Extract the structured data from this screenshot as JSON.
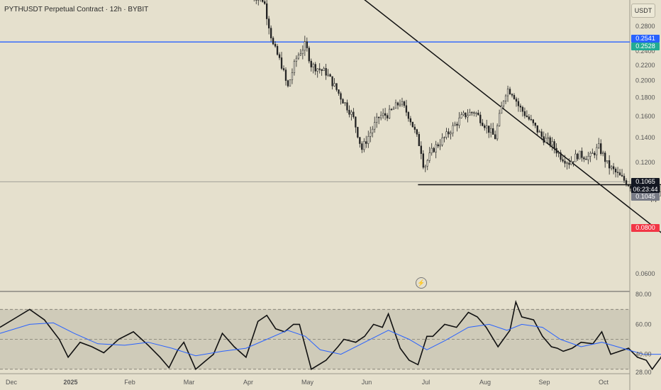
{
  "header": {
    "title": "PYTHUSDT Perpetual Contract · 12h · BYBIT",
    "currency": "USDT"
  },
  "price_tags": [
    {
      "label": "0.2541",
      "value": 0.2541,
      "color": "#2962ff"
    },
    {
      "label": "0.2528",
      "value": 0.2528,
      "color": "#22ab94"
    },
    {
      "label": "0.1065",
      "sub": "06:23:44",
      "value": 0.1065,
      "color": "#131722"
    },
    {
      "label": "0.1045",
      "value": 0.1045,
      "color": "#787b86"
    },
    {
      "label": "0.0800",
      "value": 0.08,
      "color": "#f23645"
    }
  ],
  "icons": {
    "alert": "lightning-icon"
  },
  "colors": {
    "background": "#e5e0cd",
    "candles": "#222222",
    "resistance": "#2962ff",
    "target_zone": "#a6d1b8",
    "stop_zone": "#eeb6b0",
    "rsi": "#111111",
    "rsi_ma": "#2962ff"
  },
  "chart_data": [
    {
      "type": "candlestick",
      "title": "PYTHUSDT Perpetual Contract · 12h · BYBIT",
      "timeframe": "12h",
      "y_scale": "log",
      "ylim": [
        0.054,
        0.33
      ],
      "y_ticks": [
        0.28,
        0.24,
        0.22,
        0.2,
        0.18,
        0.16,
        0.14,
        0.12,
        0.06
      ],
      "y_tick_labels": [
        "0.2800",
        "0.2400",
        "0.2200",
        "0.2000",
        "0.1800",
        "0.1600",
        "0.1400",
        "0.1200",
        "0.0600"
      ],
      "x_ticks": [
        "Dec",
        "2025",
        "Feb",
        "Mar",
        "Apr",
        "May",
        "Jun",
        "Jul",
        "Aug",
        "Sep",
        "Oct"
      ],
      "grid": false,
      "price_path": [
        [
          8.5,
          0.34
        ],
        [
          8.9,
          0.33
        ],
        [
          9.0,
          0.3
        ],
        [
          9.2,
          0.25
        ],
        [
          9.5,
          0.22
        ],
        [
          9.7,
          0.19
        ],
        [
          10.0,
          0.23
        ],
        [
          10.3,
          0.25
        ],
        [
          10.5,
          0.22
        ],
        [
          11.0,
          0.21
        ],
        [
          11.5,
          0.18
        ],
        [
          11.9,
          0.16
        ],
        [
          12.2,
          0.13
        ],
        [
          12.5,
          0.145
        ],
        [
          12.8,
          0.16
        ],
        [
          13.1,
          0.162
        ],
        [
          13.5,
          0.175
        ],
        [
          13.8,
          0.16
        ],
        [
          14.0,
          0.145
        ],
        [
          14.2,
          0.13
        ],
        [
          14.3,
          0.116
        ],
        [
          14.6,
          0.13
        ],
        [
          15.0,
          0.14
        ],
        [
          15.6,
          0.16
        ],
        [
          16.0,
          0.165
        ],
        [
          16.4,
          0.15
        ],
        [
          16.7,
          0.14
        ],
        [
          17.0,
          0.18
        ],
        [
          17.1,
          0.19
        ],
        [
          17.3,
          0.185
        ],
        [
          17.5,
          0.17
        ],
        [
          17.9,
          0.155
        ],
        [
          18.3,
          0.14
        ],
        [
          18.6,
          0.135
        ],
        [
          18.9,
          0.125
        ],
        [
          19.2,
          0.12
        ],
        [
          19.5,
          0.126
        ],
        [
          19.9,
          0.124
        ],
        [
          20.2,
          0.132
        ],
        [
          20.5,
          0.118
        ],
        [
          20.9,
          0.11
        ],
        [
          21.2,
          0.105
        ],
        [
          21.5,
          0.1
        ],
        [
          21.8,
          0.096
        ],
        [
          22.2,
          0.098
        ],
        [
          22.5,
          0.102
        ],
        [
          22.7,
          0.104
        ],
        [
          22.9,
          0.113
        ],
        [
          23.0,
          0.107
        ],
        [
          23.05,
          0.1065
        ]
      ],
      "trendlines": [
        {
          "name": "descending",
          "from": [
            12.0,
            0.345
          ],
          "to": [
            24.8,
            0.054
          ]
        },
        {
          "name": "support",
          "from": [
            14.1,
            0.1045
          ],
          "to": [
            28.5,
            0.1045
          ]
        },
        {
          "name": "resistance",
          "value": 0.2541
        }
      ],
      "long_position": {
        "entry": 0.1065,
        "target": 0.2528,
        "stop": 0.08,
        "x_start": 23.0,
        "x_end": 29.8
      },
      "last_price": 0.1065,
      "countdown": "06:23:44"
    },
    {
      "type": "line",
      "title": "",
      "ylim": [
        27,
        82
      ],
      "y_ticks": [
        80,
        60,
        40,
        28
      ],
      "y_tick_labels": [
        "80.00",
        "60.00",
        "40.00",
        "28.00"
      ],
      "bands": {
        "upper": 70,
        "middle": 50,
        "lower": 30
      },
      "series": [
        {
          "key": "rsi",
          "color": "#111111",
          "values": [
            [
              0.0,
              58
            ],
            [
              0.5,
              64
            ],
            [
              1.0,
              70
            ],
            [
              1.5,
              63
            ],
            [
              2.0,
              50
            ],
            [
              2.3,
              38
            ],
            [
              2.7,
              48
            ],
            [
              3.1,
              45
            ],
            [
              3.5,
              41
            ],
            [
              4.0,
              50
            ],
            [
              4.5,
              55
            ],
            [
              5.0,
              46
            ],
            [
              5.4,
              38
            ],
            [
              5.7,
              31
            ],
            [
              6.0,
              43
            ],
            [
              6.2,
              48
            ],
            [
              6.6,
              30
            ],
            [
              6.9,
              35
            ],
            [
              7.2,
              40
            ],
            [
              7.5,
              54
            ],
            [
              7.9,
              45
            ],
            [
              8.3,
              38
            ],
            [
              8.7,
              62
            ],
            [
              9.0,
              66
            ],
            [
              9.3,
              57
            ],
            [
              9.6,
              55
            ],
            [
              9.9,
              60
            ],
            [
              10.1,
              60
            ],
            [
              10.5,
              30
            ],
            [
              11.0,
              36
            ],
            [
              11.4,
              45
            ],
            [
              11.6,
              50
            ],
            [
              12.0,
              48
            ],
            [
              12.3,
              52
            ],
            [
              12.6,
              60
            ],
            [
              12.9,
              58
            ],
            [
              13.1,
              67
            ],
            [
              13.5,
              44
            ],
            [
              13.8,
              36
            ],
            [
              14.1,
              33
            ],
            [
              14.4,
              52
            ],
            [
              14.6,
              52
            ],
            [
              15.0,
              60
            ],
            [
              15.4,
              58
            ],
            [
              15.8,
              68
            ],
            [
              16.1,
              65
            ],
            [
              16.4,
              58
            ],
            [
              16.8,
              45
            ],
            [
              17.2,
              56
            ],
            [
              17.4,
              75
            ],
            [
              17.6,
              65
            ],
            [
              18.0,
              63
            ],
            [
              18.3,
              52
            ],
            [
              18.6,
              45
            ],
            [
              18.8,
              44
            ],
            [
              19.0,
              42
            ],
            [
              19.3,
              44
            ],
            [
              19.6,
              48
            ],
            [
              20.0,
              47
            ],
            [
              20.3,
              55
            ],
            [
              20.6,
              40
            ],
            [
              20.9,
              42
            ],
            [
              21.2,
              44
            ],
            [
              21.5,
              38
            ],
            [
              21.8,
              36
            ],
            [
              22.0,
              30
            ],
            [
              22.3,
              38
            ],
            [
              22.6,
              52
            ],
            [
              22.8,
              55
            ],
            [
              23.0,
              64
            ],
            [
              23.1,
              60
            ]
          ]
        },
        {
          "key": "rsi_ma",
          "color": "#2962ff",
          "values": [
            [
              0.0,
              54
            ],
            [
              1.0,
              60
            ],
            [
              1.8,
              61
            ],
            [
              2.5,
              54
            ],
            [
              3.3,
              47
            ],
            [
              4.2,
              46
            ],
            [
              5.0,
              48
            ],
            [
              5.8,
              44
            ],
            [
              6.6,
              39
            ],
            [
              7.5,
              42
            ],
            [
              8.3,
              44
            ],
            [
              9.0,
              50
            ],
            [
              9.7,
              56
            ],
            [
              10.3,
              52
            ],
            [
              10.8,
              43
            ],
            [
              11.5,
              40
            ],
            [
              12.3,
              48
            ],
            [
              13.1,
              56
            ],
            [
              13.8,
              50
            ],
            [
              14.4,
              43
            ],
            [
              15.0,
              49
            ],
            [
              15.8,
              58
            ],
            [
              16.5,
              60
            ],
            [
              17.1,
              56
            ],
            [
              17.6,
              60
            ],
            [
              18.3,
              58
            ],
            [
              18.9,
              50
            ],
            [
              19.6,
              45
            ],
            [
              20.3,
              48
            ],
            [
              21.0,
              44
            ],
            [
              21.7,
              40
            ],
            [
              22.4,
              40
            ],
            [
              23.0,
              47
            ],
            [
              23.1,
              52
            ]
          ]
        }
      ]
    }
  ]
}
